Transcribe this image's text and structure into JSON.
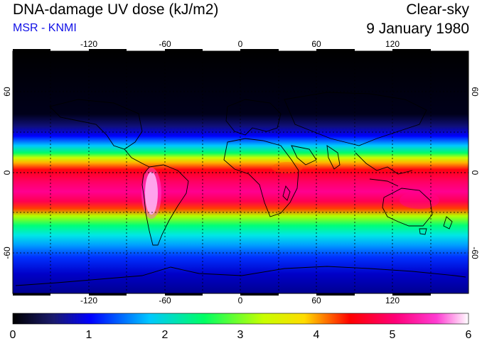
{
  "header": {
    "title": "DNA-damage UV dose (kJ/m2)",
    "subtitle": "MSR - KNMI",
    "product": "Clear-sky",
    "date": "9 January 1980"
  },
  "map": {
    "lon_ticks": [
      {
        "value": -120,
        "label": "-120"
      },
      {
        "value": -60,
        "label": "-60"
      },
      {
        "value": 0,
        "label": "0"
      },
      {
        "value": 60,
        "label": "60"
      },
      {
        "value": 120,
        "label": "120"
      }
    ],
    "lat_ticks": [
      {
        "value": 60,
        "label": "60"
      },
      {
        "value": 0,
        "label": "0"
      },
      {
        "value": -60,
        "label": "-60"
      }
    ],
    "lat_range": [
      -90,
      90
    ],
    "lon_range": [
      -180,
      180
    ]
  },
  "colorbar": {
    "min": 0,
    "max": 6,
    "labels": [
      "0",
      "1",
      "2",
      "3",
      "4",
      "5",
      "6"
    ]
  },
  "colors": {
    "subtitle": "#1010e6",
    "scale": [
      "#000000",
      "#1a1a6e",
      "#0000ff",
      "#00c8ff",
      "#00ff64",
      "#c8ff00",
      "#ffdc00",
      "#ff0000",
      "#ff0078",
      "#ff3cd2",
      "#ffffff"
    ]
  }
}
